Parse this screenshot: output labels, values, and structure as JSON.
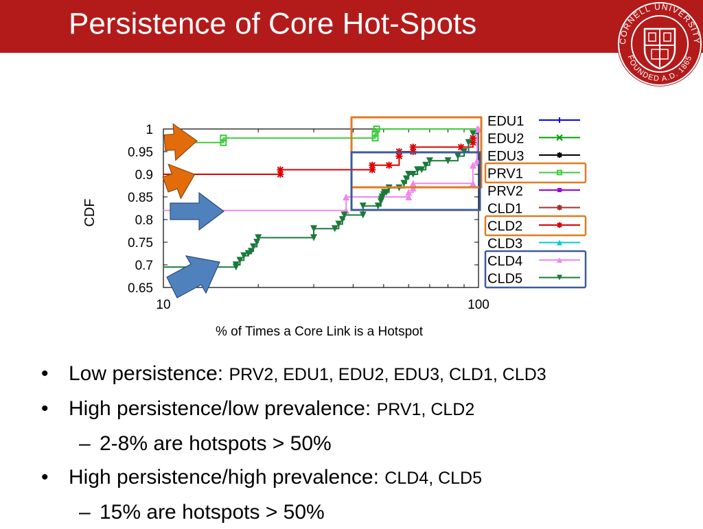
{
  "slide": {
    "title": "Persistence of Core Hot-Spots",
    "logo_text_top": "CORNELL UNIVERSITY",
    "logo_text_bottom": "FOUNDED A.D. 1865"
  },
  "colors": {
    "title_bar": "#b31b1b",
    "orange_highlight": "#e07b1f",
    "blue_highlight": "#3d5a99",
    "arrow_orange": "#e36c0a",
    "arrow_blue": "#4f81bd"
  },
  "chart_data": {
    "type": "line",
    "xlabel": "% of Times a Core Link is a Hotspot",
    "ylabel": "CDF",
    "xscale": "log",
    "xlim": [
      10,
      100
    ],
    "ylim": [
      0.65,
      1.0
    ],
    "x_ticks": [
      "10",
      "100"
    ],
    "y_ticks": [
      "0.65",
      "0.7",
      "0.75",
      "0.8",
      "0.85",
      "0.9",
      "0.95",
      "1"
    ],
    "legend_position": "right",
    "grid": false,
    "series": [
      {
        "name": "EDU1",
        "color": "#0000ff",
        "marker": "plus",
        "x": [],
        "y": []
      },
      {
        "name": "EDU2",
        "color": "#00a000",
        "marker": "x",
        "x": [],
        "y": []
      },
      {
        "name": "EDU3",
        "color": "#000000",
        "marker": "star",
        "x": [],
        "y": []
      },
      {
        "name": "PRV1",
        "color": "#3ccc3c",
        "marker": "square-open",
        "x": [
          10,
          15.5,
          15.5,
          47,
          47,
          47.5,
          100
        ],
        "y": [
          0.97,
          0.97,
          0.98,
          0.98,
          0.99,
          1.0,
          1.0
        ]
      },
      {
        "name": "PRV2",
        "color": "#9900dd",
        "marker": "square",
        "x": [],
        "y": []
      },
      {
        "name": "CLD1",
        "color": "#993333",
        "marker": "star",
        "x": [],
        "y": []
      },
      {
        "name": "CLD2",
        "color": "#dd0000",
        "marker": "star",
        "x": [
          10,
          23.5,
          23.5,
          46,
          46,
          52,
          56,
          56,
          62,
          62,
          88,
          96,
          96,
          100
        ],
        "y": [
          0.9,
          0.9,
          0.91,
          0.91,
          0.92,
          0.92,
          0.94,
          0.95,
          0.95,
          0.96,
          0.96,
          0.97,
          0.98,
          0.98
        ]
      },
      {
        "name": "CLD3",
        "color": "#00cccc",
        "marker": "triangle-up",
        "x": [],
        "y": []
      },
      {
        "name": "CLD4",
        "color": "#ee88ee",
        "marker": "triangle-up",
        "x": [
          10,
          38,
          38,
          60,
          60,
          62,
          62,
          96,
          96,
          99,
          99,
          100
        ],
        "y": [
          0.82,
          0.82,
          0.85,
          0.85,
          0.86,
          0.87,
          0.88,
          0.88,
          0.92,
          0.93,
          1.0,
          1.0
        ]
      },
      {
        "name": "CLD5",
        "color": "#1a7a3a",
        "marker": "triangle-down",
        "x": [
          10,
          17,
          17,
          17.5,
          18,
          18.6,
          19,
          19.3,
          19.8,
          20,
          30,
          30,
          35,
          36,
          37,
          37.5,
          43,
          43,
          48,
          49,
          49.2,
          49.5,
          50,
          50.3,
          51,
          52,
          56,
          58,
          59,
          60,
          62,
          64,
          66,
          68,
          70,
          80,
          86,
          90,
          93,
          96,
          100
        ],
        "y": [
          0.695,
          0.695,
          0.7,
          0.71,
          0.72,
          0.725,
          0.73,
          0.74,
          0.75,
          0.76,
          0.76,
          0.78,
          0.78,
          0.79,
          0.8,
          0.81,
          0.81,
          0.83,
          0.83,
          0.84,
          0.845,
          0.85,
          0.855,
          0.86,
          0.86,
          0.87,
          0.87,
          0.88,
          0.89,
          0.9,
          0.9,
          0.91,
          0.91,
          0.92,
          0.93,
          0.93,
          0.94,
          0.95,
          0.97,
          0.99,
          0.99
        ]
      }
    ]
  },
  "bullets": [
    {
      "label": "Low persistence:",
      "detail": "PRV2, EDU1, EDU2, EDU3, CLD1, CLD3"
    },
    {
      "label": "High persistence/low prevalence:",
      "detail": "PRV1, CLD2",
      "sub": "2-8% are hotspots > 50%"
    },
    {
      "label": "High persistence/high prevalence:",
      "detail": "CLD4, CLD5",
      "sub": "15% are hotspots > 50%"
    }
  ],
  "bullet_symbol": "•",
  "dash_symbol": "–"
}
